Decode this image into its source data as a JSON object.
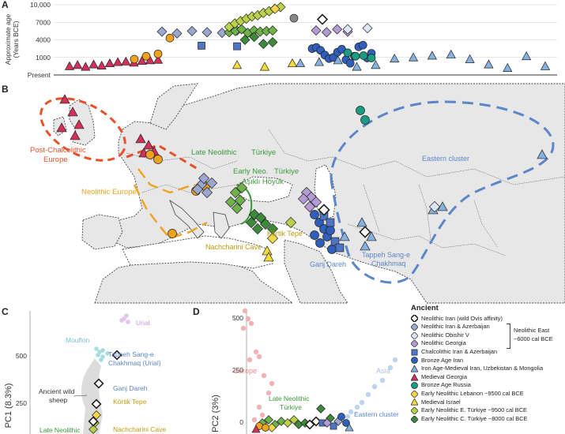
{
  "panel_a": {
    "letter": "A",
    "ylabel_line1": "Approximate age",
    "ylabel_line2": "(Years BCE)",
    "ticks": [
      "10,000",
      "7000",
      "4000",
      "1000",
      "Present"
    ],
    "tick_values": [
      10000,
      7000,
      4000,
      1000,
      -2000
    ],
    "chart_data": {
      "type": "scatter",
      "ylabel": "Approximate age (Years BCE)",
      "y_ticks": [
        "10,000",
        "7000",
        "4000",
        "1000",
        "Present"
      ],
      "points": [
        {
          "g": "mg",
          "age": -500
        },
        {
          "g": "mg",
          "age": -300
        },
        {
          "g": "mg",
          "age": -600
        },
        {
          "g": "mg",
          "age": -200
        },
        {
          "g": "mg",
          "age": -400
        },
        {
          "g": "mg",
          "age": 0
        },
        {
          "g": "mg",
          "age": 200
        },
        {
          "g": "mg",
          "age": 300
        },
        {
          "g": "mg",
          "age": 100
        },
        {
          "g": "mg",
          "age": 400
        },
        {
          "g": "mg",
          "age": 500
        },
        {
          "g": "mg",
          "age": 600
        },
        {
          "g": "ne",
          "age": 700
        },
        {
          "g": "ne",
          "age": 1200
        },
        {
          "g": "ne",
          "age": 1600
        },
        {
          "g": "ne",
          "age": 4300
        },
        {
          "g": "cia",
          "age": 3000
        },
        {
          "g": "cia",
          "age": 2900
        },
        {
          "g": "nia",
          "age": 5400
        },
        {
          "g": "nia",
          "age": 5100
        },
        {
          "g": "nia",
          "age": 5500
        },
        {
          "g": "nia",
          "age": 5300
        },
        {
          "g": "nia",
          "age": 5200
        },
        {
          "g": "nia",
          "age": 5600
        },
        {
          "g": "ln",
          "age": 5300
        },
        {
          "g": "ln",
          "age": 5500
        },
        {
          "g": "ln",
          "age": 5800
        },
        {
          "g": "ln",
          "age": 5200
        },
        {
          "g": "ln",
          "age": 5600
        },
        {
          "g": "ln",
          "age": 5400
        },
        {
          "g": "ln",
          "age": 5500
        },
        {
          "g": "ln",
          "age": 5600
        },
        {
          "g": "ent",
          "age": 6200
        },
        {
          "g": "ent",
          "age": 6800
        },
        {
          "g": "ent",
          "age": 7200
        },
        {
          "g": "ent",
          "age": 7600
        },
        {
          "g": "ent",
          "age": 8000
        },
        {
          "g": "ent",
          "age": 8200
        },
        {
          "g": "ent",
          "age": 8600
        },
        {
          "g": "ent",
          "age": 8900
        },
        {
          "g": "ent",
          "age": 9300
        },
        {
          "g": "ent",
          "age": 9600
        },
        {
          "g": "enc",
          "age": 4000
        },
        {
          "g": "enc",
          "age": 4500
        },
        {
          "g": "enc",
          "age": 3300
        },
        {
          "g": "enc",
          "age": 3600
        },
        {
          "g": "nil",
          "age": 7700
        },
        {
          "g": "enl",
          "age": 9300
        },
        {
          "g": "mi",
          "age": -300
        },
        {
          "g": "mi",
          "age": -600
        },
        {
          "g": "mi",
          "age": 0
        },
        {
          "g": "nwi",
          "age": 7500
        },
        {
          "g": "bai",
          "age": 2500
        },
        {
          "g": "bai",
          "age": 2700
        },
        {
          "g": "bai",
          "age": 2200
        },
        {
          "g": "bai",
          "age": 1400
        },
        {
          "g": "bai",
          "age": 800
        },
        {
          "g": "bai",
          "age": 1000
        },
        {
          "g": "bai",
          "age": 1900
        },
        {
          "g": "bai",
          "age": 2400
        },
        {
          "g": "bai",
          "age": 600
        },
        {
          "g": "bai",
          "age": 0
        },
        {
          "g": "bai",
          "age": 1200
        },
        {
          "g": "bai",
          "age": 2800
        },
        {
          "g": "bai",
          "age": 3100
        },
        {
          "g": "bai",
          "age": 900
        },
        {
          "g": "bai",
          "age": 1700
        },
        {
          "g": "imi",
          "age": 0
        },
        {
          "g": "imi",
          "age": 200
        },
        {
          "g": "imi",
          "age": 500
        },
        {
          "g": "imi",
          "age": -600
        },
        {
          "g": "imi",
          "age": -300
        },
        {
          "g": "imi",
          "age": 800
        },
        {
          "g": "imi",
          "age": 1000
        },
        {
          "g": "imi",
          "age": 1300
        },
        {
          "g": "imi",
          "age": 1500
        },
        {
          "g": "imi",
          "age": 700
        },
        {
          "g": "imi",
          "age": -200
        },
        {
          "g": "imi",
          "age": -800
        },
        {
          "g": "imi",
          "age": 1200
        },
        {
          "g": "imi",
          "age": -500
        },
        {
          "g": "ng",
          "age": 5600
        },
        {
          "g": "ng",
          "age": 5300
        },
        {
          "g": "ng",
          "age": 5800
        },
        {
          "g": "ng",
          "age": 5400
        },
        {
          "g": "nob",
          "age": 5800
        },
        {
          "g": "nob",
          "age": 6000
        },
        {
          "g": "bar",
          "age": 1800
        },
        {
          "g": "bar",
          "age": 1200
        },
        {
          "g": "bar",
          "age": 1300
        },
        {
          "g": "bar",
          "age": 900
        }
      ]
    }
  },
  "panel_b": {
    "letter": "B",
    "labels": {
      "post_chalco_1": "Post-Chalcolithic",
      "post_chalco_2": "Europe",
      "neolithic_europe": "Neolithic Europe",
      "late_neolithic": "Late Neolithic",
      "turkiye_1": "Türkiye",
      "early_neo": "Early Neo.",
      "turkiye_2": "Türkiye",
      "asikli": "Aşıklı Höyük",
      "kortik": "Körtik Tepe",
      "nachcharini": "Nachcharini Cave",
      "ganj": "Ganj Dareh",
      "tappeh_1": "Tappeh Sang-e",
      "tappeh_2": "Chakhmaq",
      "eastern_cluster": "Eastern cluster"
    }
  },
  "panel_c": {
    "letter": "C",
    "ylabel": "PC1 (8.3%)",
    "ticks": [
      "500",
      "250"
    ],
    "labels": {
      "urial": "Urial",
      "mouflon": "Mouflon",
      "tappeh_1": "Tappeh Sang-e",
      "tappeh_2": "Chakhmaq (Urial)",
      "ancient_wild_1": "Ancient wild",
      "ancient_wild_2": "sheep",
      "ganj": "Ganj Dareh",
      "kortik": "Körtik Tepe",
      "nachcharini": "Nachcharini Cave",
      "late_neolithic": "Late Neolithic"
    }
  },
  "panel_d": {
    "letter": "D",
    "ylabel": "PC2 (3%)",
    "ticks": [
      "500",
      "250",
      "0"
    ],
    "labels": {
      "europe": "Europe",
      "asia": "Asia",
      "late_neo_1": "Late Neolithic",
      "late_neo_2": "Türkiye",
      "eastern_cluster": "Eastern cluster"
    }
  },
  "legend": {
    "title": "Ancient",
    "items": [
      {
        "id": "nwi",
        "label": "Neolithic Iran (wild Ovis affinity)",
        "color": "#ffffff",
        "shape": "diamond"
      },
      {
        "id": "nia",
        "label": "Neolithic Iran & Azerbaijan",
        "color": "#9aa7cf",
        "shape": "diamond"
      },
      {
        "id": "nob",
        "label": "Neolithic Obishir V",
        "color": "#dde6f4",
        "shape": "diamond"
      },
      {
        "id": "ng",
        "label": "Neolithic Georgia",
        "color": "#b49bd6",
        "shape": "diamond"
      },
      {
        "id": "cia",
        "label": "Chalcolithic Iran & Azerbaijan",
        "color": "#4f74c4",
        "shape": "square"
      },
      {
        "id": "bai",
        "label": "Bronze Age Iran",
        "color": "#2f5fba",
        "shape": "circle"
      },
      {
        "id": "imi",
        "label": "Iron Age-Medieval Iran, Uzbekistan & Mongolia",
        "color": "#86b1de",
        "shape": "triangle"
      },
      {
        "id": "mg",
        "label": "Medieval Georgia",
        "color": "#d2325a",
        "shape": "triangle"
      },
      {
        "id": "bar",
        "label": "Bronze Age Russia",
        "color": "#1a9c83",
        "shape": "circle"
      },
      {
        "id": "enl",
        "label": "Early Neolithic Lebanon ~9500 cal BCE",
        "color": "#f2d74a",
        "shape": "diamond"
      },
      {
        "id": "mi",
        "label": "Medieval Israel",
        "color": "#f5dc3a",
        "shape": "triangle"
      },
      {
        "id": "ent",
        "label": "Early Neolithic E. Türkiye ~9500 cal BCE",
        "color": "#b9d24a",
        "shape": "diamond"
      },
      {
        "id": "enc",
        "label": "Early Neolithic C. Türkiye ~8000 cal BCE",
        "color": "#3d8b3a",
        "shape": "diamond"
      }
    ],
    "bracket_1": "Neolithic East",
    "bracket_2": "~6000 cal BCE"
  },
  "colors": {
    "post_chalco": "#e8502a",
    "neolithic_europe": "#f0a21f",
    "late_neolithic": "#3a9a3a",
    "eastern": "#5b86c9",
    "nachcharini": "#c39a10"
  }
}
